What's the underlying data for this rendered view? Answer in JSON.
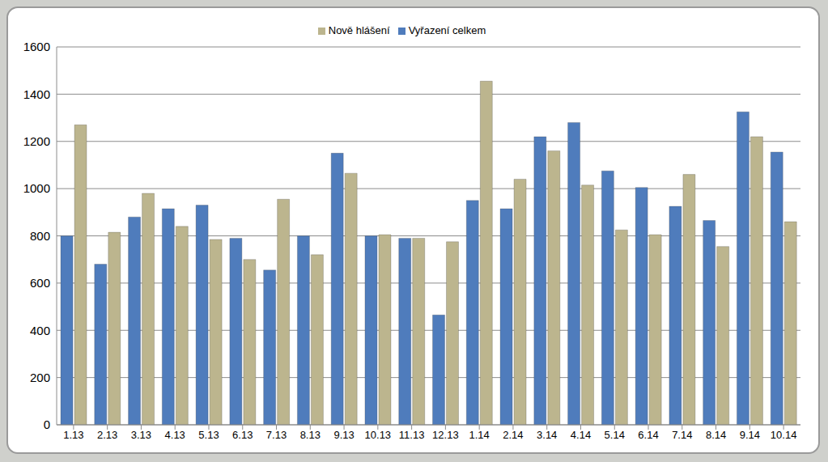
{
  "chart_data": {
    "type": "bar",
    "categories": [
      "1.13",
      "2.13",
      "3.13",
      "4.13",
      "5.13",
      "6.13",
      "7.13",
      "8.13",
      "9.13",
      "10.13",
      "11.13",
      "12.13",
      "1.14",
      "2.14",
      "3.14",
      "4.14",
      "5.14",
      "6.14",
      "7.14",
      "8.14",
      "9.14",
      "10.14"
    ],
    "series": [
      {
        "name": "Vyřazení celkem",
        "color": "#4f7cbc",
        "values": [
          800,
          680,
          880,
          915,
          930,
          790,
          655,
          800,
          1150,
          800,
          790,
          465,
          950,
          915,
          1220,
          1280,
          1075,
          1005,
          925,
          865,
          1325,
          1155
        ]
      },
      {
        "name": "Nově hlášení",
        "color": "#bcb58e",
        "values": [
          1270,
          815,
          980,
          840,
          785,
          700,
          955,
          720,
          1065,
          805,
          790,
          775,
          1455,
          1040,
          1160,
          1015,
          825,
          805,
          1060,
          755,
          1220,
          860
        ]
      }
    ],
    "ylim": [
      0,
      1600
    ],
    "yticks": [
      0,
      200,
      400,
      600,
      800,
      1000,
      1200,
      1400,
      1600
    ],
    "grid": true,
    "legend": "top"
  }
}
